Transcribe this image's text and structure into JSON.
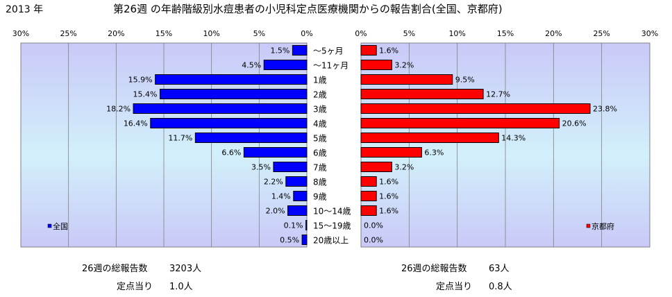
{
  "header": {
    "year": "2013 年",
    "title": "第26週 の年齢階級別水痘患者の小児科定点医療機関からの報告割合(全国、京都府)"
  },
  "chart_data": {
    "type": "bar",
    "orientation": "horizontal-butterfly",
    "categories": [
      "～5ヶ月",
      "～11ヶ月",
      "1歳",
      "2歳",
      "3歳",
      "4歳",
      "5歳",
      "6歳",
      "7歳",
      "8歳",
      "9歳",
      "10～14歳",
      "15～19歳",
      "20歳以上"
    ],
    "series": [
      {
        "name": "全国",
        "color": "#0000ff",
        "values": [
          1.5,
          4.5,
          15.9,
          15.4,
          18.2,
          16.4,
          11.7,
          6.6,
          3.5,
          2.2,
          1.4,
          2.0,
          0.1,
          0.5
        ],
        "labels": [
          "1.5%",
          "4.5%",
          "15.9%",
          "15.4%",
          "18.2%",
          "16.4%",
          "11.7%",
          "6.6%",
          "3.5%",
          "2.2%",
          "1.4%",
          "2.0%",
          "0.1%",
          "0.5%"
        ]
      },
      {
        "name": "京都府",
        "color": "#ff0000",
        "values": [
          1.6,
          3.2,
          9.5,
          12.7,
          23.8,
          20.6,
          14.3,
          6.3,
          3.2,
          1.6,
          1.6,
          1.6,
          0.0,
          0.0
        ],
        "labels": [
          "1.6%",
          "3.2%",
          "9.5%",
          "12.7%",
          "23.8%",
          "20.6%",
          "14.3%",
          "6.3%",
          "3.2%",
          "1.6%",
          "1.6%",
          "1.6%",
          "0.0%",
          "0.0%"
        ]
      }
    ],
    "left_axis": {
      "ticks": [
        "30%",
        "25%",
        "20%",
        "15%",
        "10%",
        "5%",
        "0%"
      ],
      "range": [
        30,
        0
      ]
    },
    "right_axis": {
      "ticks": [
        "0%",
        "5%",
        "10%",
        "15%",
        "20%",
        "25%",
        "30%"
      ],
      "range": [
        0,
        30
      ]
    },
    "grid": true,
    "legend_left": "全国",
    "legend_right": "京都府"
  },
  "summary": {
    "left": {
      "total_label": "26週の総報告数",
      "total_value": "3203人",
      "per_label": "定点当り",
      "per_value": "1.0人"
    },
    "right": {
      "total_label": "26週の総報告数",
      "total_value": "63人",
      "per_label": "定点当り",
      "per_value": "0.8人"
    }
  }
}
